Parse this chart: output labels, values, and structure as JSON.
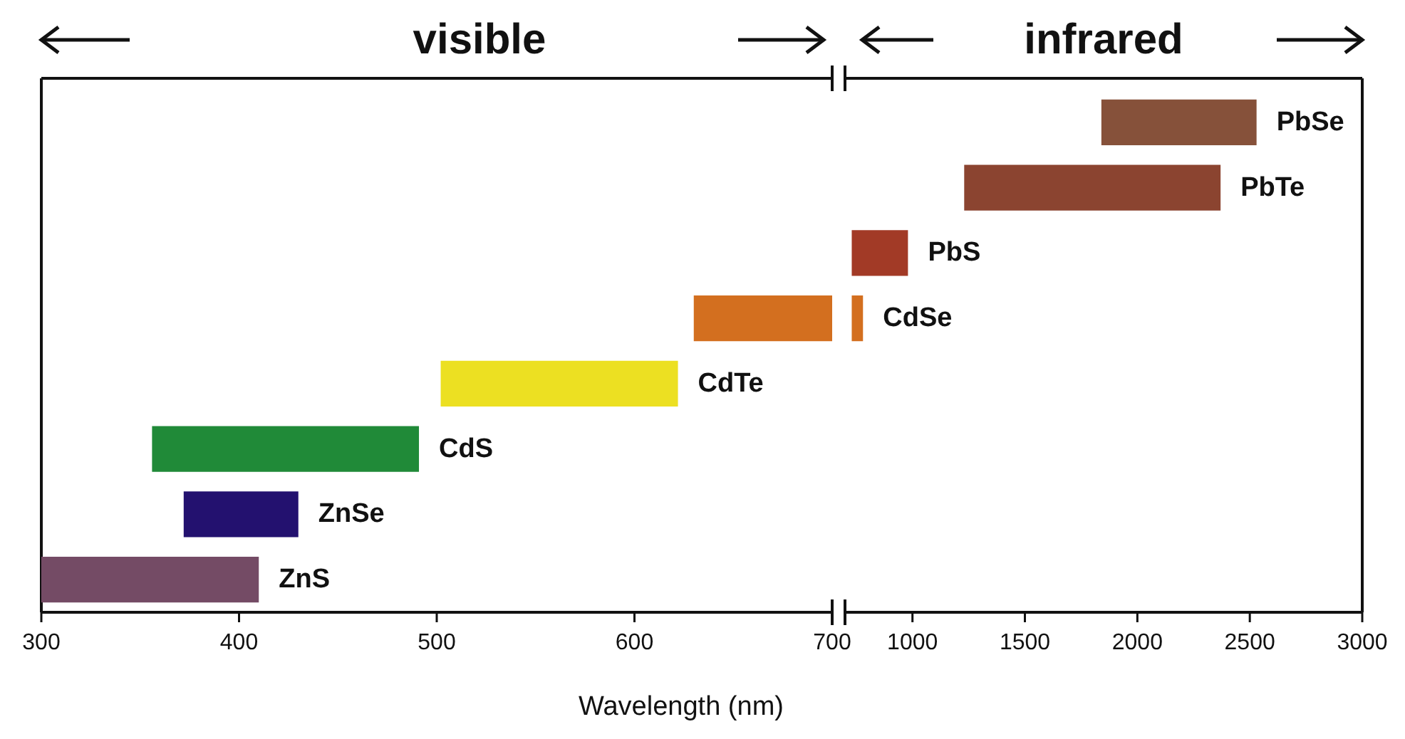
{
  "chart_data": [
    {
      "type": "bar",
      "orientation": "horizontal",
      "title": "visible",
      "xlabel": "Wavelength (nm)",
      "tick_labels": "x",
      "xlim": [
        300,
        700
      ],
      "xticks": [
        300,
        400,
        500,
        600,
        700
      ],
      "categories": [
        null,
        null,
        null,
        null,
        "CdTe",
        "CdS",
        "ZnSe",
        "ZnS"
      ],
      "base": [
        null,
        null,
        null,
        630,
        502,
        356,
        372,
        300
      ],
      "values": [
        null,
        null,
        null,
        70,
        120,
        135,
        58,
        110
      ],
      "colors": [
        null,
        null,
        null,
        "#d36f1f",
        "#ece022",
        "#208a38",
        "#23116f",
        "#744b65"
      ]
    },
    {
      "type": "bar",
      "orientation": "horizontal",
      "title": "infrared",
      "tick_labels": "x",
      "xlim": [
        700,
        3000
      ],
      "xticks": [
        1000,
        1500,
        2000,
        2500,
        3000
      ],
      "categories": [
        "PbSe",
        "PbTe",
        "PbS",
        "CdSe",
        null,
        null,
        null,
        null
      ],
      "base": [
        1840,
        1230,
        730,
        730,
        null,
        null,
        null,
        null
      ],
      "values": [
        690,
        1140,
        250,
        50,
        null,
        null,
        null,
        null
      ],
      "colors": [
        "#86513a",
        "#8b4430",
        "#a23a26",
        "#d36f1f",
        null,
        null,
        null,
        null
      ]
    }
  ]
}
